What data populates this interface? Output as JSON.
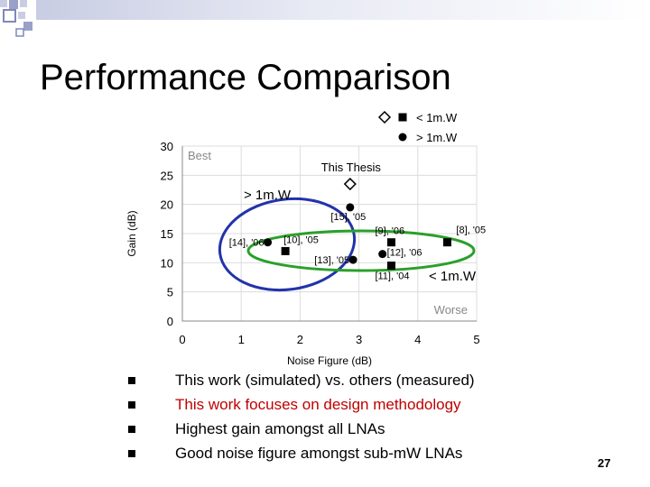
{
  "slide": {
    "title": "Performance Comparison",
    "page_number": "27",
    "bullets": [
      {
        "text": "This work (simulated) vs. others (measured)",
        "highlight": false
      },
      {
        "text": "This work focuses on design methodology",
        "highlight": true
      },
      {
        "text": "Highest gain amongst all LNAs",
        "highlight": false
      },
      {
        "text": "Good noise figure amongst sub-mW LNAs",
        "highlight": false
      }
    ]
  },
  "chart_data": {
    "type": "scatter",
    "xlabel": "Noise Figure (dB)",
    "ylabel": "Gain (dB)",
    "xlim": [
      0,
      5
    ],
    "ylim": [
      0,
      30
    ],
    "xticks": [
      "0",
      "1",
      "2",
      "3",
      "4",
      "5"
    ],
    "yticks": [
      "0",
      "5",
      "10",
      "15",
      "20",
      "25",
      "30"
    ],
    "grid": true,
    "legend": {
      "placement": "top-right",
      "entries": [
        {
          "label": "< 1m.W",
          "markers": [
            "diamond",
            "square"
          ]
        },
        {
          "label": "> 1m.W",
          "markers": [
            "circle"
          ]
        }
      ]
    },
    "annotations": {
      "best": "Best",
      "worse": "Worse",
      "group_high": "> 1m.W",
      "group_low": "< 1m.W"
    },
    "colors": {
      "group_high": "#2233aa",
      "group_low": "#2aa02a",
      "axis": "#888888",
      "grid": "#dcdcdc"
    },
    "points": [
      {
        "label": "This Thesis",
        "x": 2.85,
        "y": 23.5,
        "marker": "diamond"
      },
      {
        "label": "[15], '05",
        "x": 2.85,
        "y": 19.5,
        "marker": "circle"
      },
      {
        "label": "[14], '06",
        "x": 1.45,
        "y": 13.5,
        "marker": "circle"
      },
      {
        "label": "[10], '05",
        "x": 1.75,
        "y": 12.0,
        "marker": "square"
      },
      {
        "label": "[13], '05",
        "x": 2.9,
        "y": 10.5,
        "marker": "circle"
      },
      {
        "label": "[9], '06",
        "x": 3.55,
        "y": 13.5,
        "marker": "square"
      },
      {
        "label": "[12], '06",
        "x": 3.4,
        "y": 11.5,
        "marker": "circle"
      },
      {
        "label": "[11], '04",
        "x": 3.55,
        "y": 9.5,
        "marker": "square"
      },
      {
        "label": "[8], '05",
        "x": 4.5,
        "y": 13.5,
        "marker": "square"
      }
    ]
  }
}
